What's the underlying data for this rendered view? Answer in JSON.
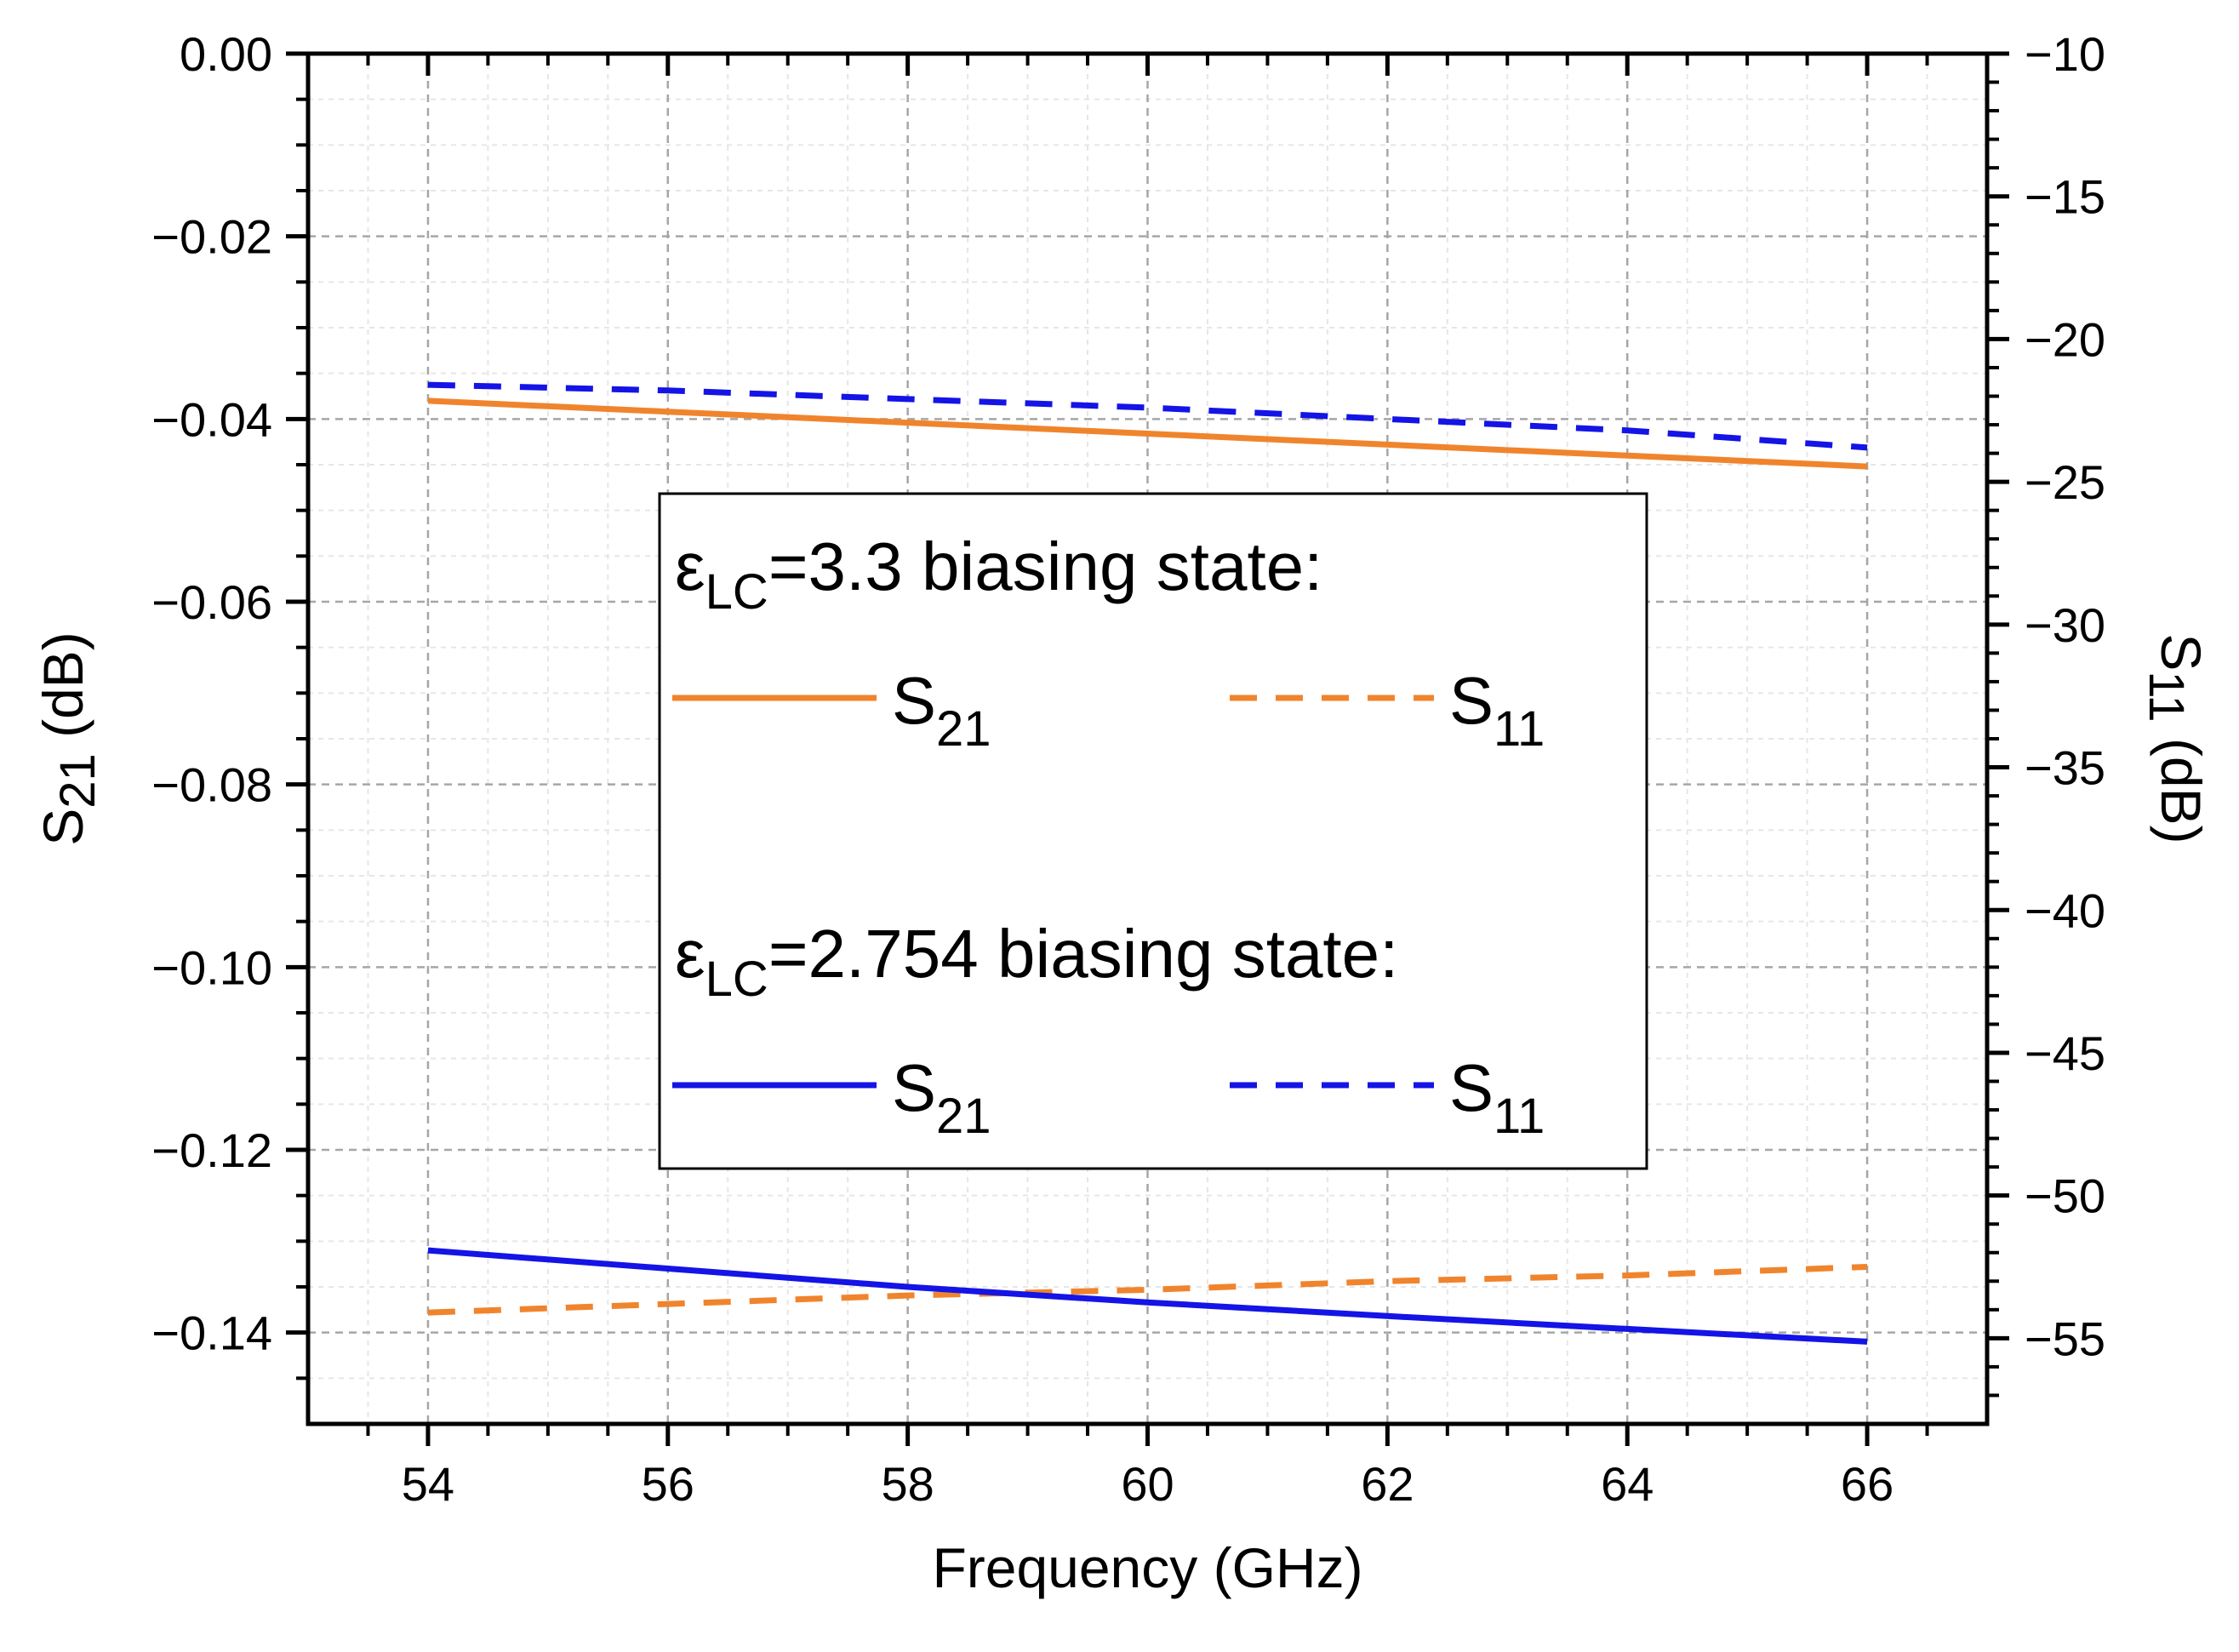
{
  "chart_data": {
    "type": "line",
    "title": "",
    "xlabel": "Frequency (GHz)",
    "ylabel_left": {
      "base": "S",
      "sub": "21",
      "unit": "(dB)"
    },
    "ylabel_right": {
      "base": "S",
      "sub": "11",
      "unit": "(dB)"
    },
    "xlim": [
      53,
      67
    ],
    "ylim_left": [
      -0.15,
      0.0
    ],
    "ylim_right": [
      -58,
      -10
    ],
    "x_ticks": [
      54,
      56,
      58,
      60,
      62,
      64,
      66
    ],
    "x_tick_labels": [
      "54",
      "56",
      "58",
      "60",
      "62",
      "64",
      "66"
    ],
    "y_left_ticks": [
      0.0,
      -0.02,
      -0.04,
      -0.06,
      -0.08,
      -0.1,
      -0.12,
      -0.14
    ],
    "y_left_tick_labels": [
      "0.00",
      "−0.02",
      "−0.04",
      "−0.06",
      "−0.08",
      "−0.10",
      "−0.12",
      "−0.14"
    ],
    "y_right_ticks": [
      -10,
      -15,
      -20,
      -25,
      -30,
      -35,
      -40,
      -45,
      -50,
      -55
    ],
    "y_right_tick_labels": [
      "−10",
      "−15",
      "−20",
      "−25",
      "−30",
      "−35",
      "−40",
      "−45",
      "−50",
      "−55"
    ],
    "grid": true,
    "legend_position": "center",
    "legend_groups": [
      {
        "eps": "ε",
        "eps_sub": "LC",
        "head_text": "=3.3 biasing state:"
      },
      {
        "eps": "ε",
        "eps_sub": "LC",
        "head_text": "=2.754 biasing state:"
      }
    ],
    "series": [
      {
        "name": "S21",
        "label_base": "S",
        "label_sub": "21",
        "group": 0,
        "axis": "left",
        "style": "solid",
        "color": "#F0842D",
        "x": [
          54,
          56,
          58,
          60,
          62,
          64,
          66
        ],
        "y": [
          -0.038,
          -0.0392,
          -0.0404,
          -0.0416,
          -0.0428,
          -0.044,
          -0.0452
        ]
      },
      {
        "name": "S11",
        "label_base": "S",
        "label_sub": "11",
        "group": 0,
        "axis": "right",
        "style": "dashed",
        "color": "#F0842D",
        "x": [
          54,
          56,
          58,
          60,
          62,
          64,
          66
        ],
        "y": [
          -54.1,
          -53.8,
          -53.5,
          -53.3,
          -53.0,
          -52.8,
          -52.5
        ]
      },
      {
        "name": "S21",
        "label_base": "S",
        "label_sub": "21",
        "group": 1,
        "axis": "left",
        "style": "solid",
        "color": "#1414E6",
        "x": [
          54,
          56,
          58,
          60,
          62,
          64,
          66
        ],
        "y": [
          -0.131,
          -0.133,
          -0.135,
          -0.1367,
          -0.1382,
          -0.1396,
          -0.141
        ]
      },
      {
        "name": "S11",
        "label_base": "S",
        "label_sub": "11",
        "group": 1,
        "axis": "right",
        "style": "dashed",
        "color": "#1414E6",
        "x": [
          54,
          56,
          58,
          60,
          62,
          64,
          66
        ],
        "y": [
          -21.6,
          -21.8,
          -22.1,
          -22.4,
          -22.8,
          -23.2,
          -23.8
        ]
      }
    ]
  }
}
